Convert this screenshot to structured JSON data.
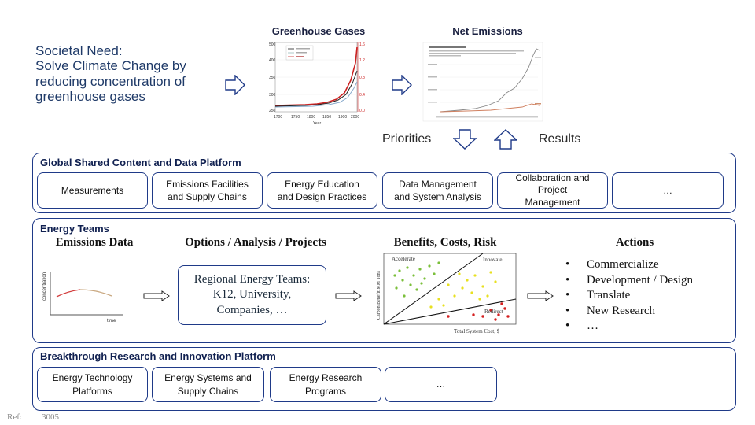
{
  "societal_need": {
    "lines": [
      "Societal Need:",
      "Solve Climate Change by",
      "reducing concentration of",
      "greenhouse gases"
    ]
  },
  "charts": {
    "greenhouse_title": "Greenhouse Gases",
    "net_title": "Net Emissions"
  },
  "feedback": {
    "priorities": "Priorities",
    "results": "Results"
  },
  "global_platform": {
    "title": "Global Shared Content and Data Platform",
    "items": [
      {
        "lines": [
          "Measurements"
        ]
      },
      {
        "lines": [
          "Emissions  Facilities",
          "and Supply  Chains"
        ]
      },
      {
        "lines": [
          "Energy Education",
          "and Design Practices"
        ]
      },
      {
        "lines": [
          "Data Management",
          "and System  Analysis"
        ]
      },
      {
        "lines": [
          "Collaboration  and",
          "Project",
          "Management"
        ]
      },
      {
        "lines": [
          "…"
        ]
      }
    ]
  },
  "energy_teams": {
    "title": "Energy Teams",
    "col_emissions": "Emissions Data",
    "col_options": "Options  / Analysis / Projects",
    "col_benefits": "Benefits, Costs, Risk",
    "col_actions": "Actions",
    "mini_chart": {
      "ylabel": "concentration",
      "xlabel": "time"
    },
    "teams_box": [
      "Regional Energy Teams:",
      "K12, University,",
      "Companies,  …"
    ],
    "scatter": {
      "ylabel": "Carbon Benefit MM Tons",
      "xlabel": "Total System  Cost, $",
      "region_accelerate": "Accelerate",
      "region_innovate": "Innovate",
      "region_redirect": "Redirect"
    },
    "actions": [
      "Commercialize",
      "Development  / Design",
      "Translate",
      "New Research",
      "…"
    ]
  },
  "research_platform": {
    "title": "Breakthrough Research and Innovation Platform",
    "items": [
      {
        "lines": [
          "Energy Technology",
          "Platforms"
        ]
      },
      {
        "lines": [
          "Energy Systems and",
          "Supply Chains"
        ]
      },
      {
        "lines": [
          "Energy Research",
          "Programs"
        ]
      },
      {
        "lines": [
          "…"
        ]
      }
    ]
  },
  "footer": {
    "ref_label": "Ref:",
    "ref_value": "3005"
  },
  "colors": {
    "border": "#1f3a88",
    "title": "#102050",
    "need_text": "#1f3a68"
  }
}
